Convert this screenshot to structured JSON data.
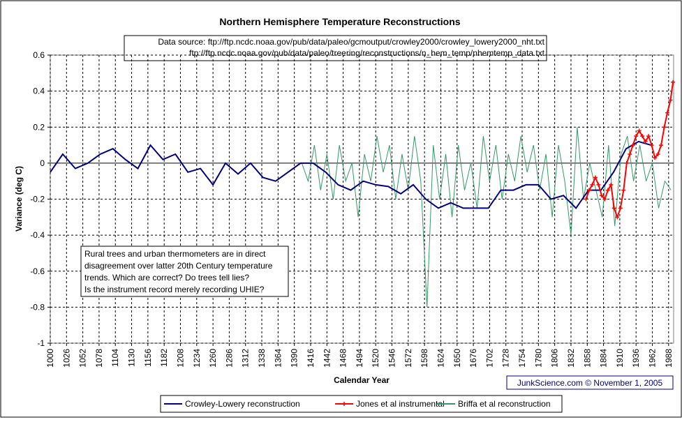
{
  "chart_data": {
    "type": "line",
    "title": "Northern Hemisphere Temperature Reconstructions",
    "source_lines": [
      "Data source: ftp://ftp.ncdc.noaa.gov/pub/data/paleo/gcmoutput/crowley2000/crowley_lowery2000_nht.txt",
      "ftp://ftp.ncdc.noaa.gov/pub/data/paleo/treering/reconstructions/n_hem_temp/nhemtemp_data.txt"
    ],
    "annotation": [
      "Rural trees and urban thermometers are in direct",
      "disagreement over latter 20th Century temperature",
      "trends. Which are correct? Do trees tell lies?",
      "Is the instrument record merely recording UHIE?"
    ],
    "credit": "JunkScience.com ©  November 1, 2005",
    "x_label": "Calendar Year",
    "y_label": "Variance (deg C)",
    "xlim": [
      1000,
      1996
    ],
    "ylim": [
      -1,
      0.6
    ],
    "xticks": [
      1000,
      1026,
      1052,
      1078,
      1104,
      1130,
      1156,
      1182,
      1208,
      1234,
      1260,
      1286,
      1312,
      1338,
      1364,
      1390,
      1416,
      1442,
      1468,
      1494,
      1520,
      1546,
      1572,
      1598,
      1624,
      1650,
      1676,
      1702,
      1728,
      1754,
      1780,
      1806,
      1832,
      1858,
      1884,
      1910,
      1936,
      1962,
      1988
    ],
    "yticks": [
      {
        "value": 0.6,
        "label": "0.6"
      },
      {
        "value": 0.4,
        "label": "0.4"
      },
      {
        "value": 0.2,
        "label": "0.2"
      },
      0,
      {
        "value": -0.2,
        "label": "-0.2"
      },
      {
        "value": -0.4,
        "label": "-0.4"
      },
      {
        "value": -0.6,
        "label": "-0.6"
      },
      {
        "value": -0.8,
        "label": "-0.8"
      },
      -1
    ],
    "grid": true,
    "series": [
      {
        "name": "Crowley-Lowery reconstruction",
        "color": "#000080",
        "x": [
          1000,
          1020,
          1040,
          1060,
          1080,
          1100,
          1120,
          1140,
          1160,
          1180,
          1200,
          1220,
          1240,
          1260,
          1280,
          1300,
          1320,
          1340,
          1360,
          1380,
          1400,
          1420,
          1440,
          1460,
          1480,
          1500,
          1520,
          1540,
          1560,
          1580,
          1600,
          1620,
          1640,
          1660,
          1680,
          1700,
          1720,
          1740,
          1760,
          1780,
          1800,
          1820,
          1840,
          1860,
          1880,
          1900,
          1920,
          1940,
          1960
        ],
        "values": [
          -0.05,
          0.05,
          -0.03,
          0.0,
          0.05,
          0.08,
          0.02,
          -0.03,
          0.1,
          0.02,
          0.05,
          -0.05,
          -0.03,
          -0.12,
          0.0,
          -0.06,
          0.0,
          -0.08,
          -0.1,
          -0.05,
          0.0,
          0.0,
          -0.05,
          -0.12,
          -0.15,
          -0.1,
          -0.12,
          -0.13,
          -0.17,
          -0.12,
          -0.2,
          -0.25,
          -0.22,
          -0.25,
          -0.25,
          -0.25,
          -0.15,
          -0.15,
          -0.12,
          -0.12,
          -0.2,
          -0.18,
          -0.25,
          -0.15,
          -0.15,
          -0.05,
          0.08,
          0.12,
          0.1
        ]
      },
      {
        "name": "Jones et al instrumental",
        "color": "#ff0000",
        "marker": "plus",
        "x": [
          1856,
          1861,
          1866,
          1871,
          1876,
          1881,
          1886,
          1891,
          1896,
          1901,
          1906,
          1911,
          1916,
          1921,
          1926,
          1931,
          1936,
          1941,
          1946,
          1951,
          1956,
          1961,
          1966,
          1971,
          1976,
          1981,
          1986,
          1991,
          1995
        ],
        "values": [
          -0.2,
          -0.15,
          -0.12,
          -0.08,
          -0.12,
          -0.18,
          -0.2,
          -0.15,
          -0.12,
          -0.25,
          -0.3,
          -0.25,
          -0.15,
          0.0,
          0.05,
          0.1,
          0.15,
          0.18,
          0.15,
          0.12,
          0.15,
          0.1,
          0.03,
          0.05,
          0.1,
          0.2,
          0.28,
          0.35,
          0.45
        ]
      },
      {
        "name": "Briffa et al reconstruction",
        "color": "#339966",
        "x": [
          1402,
          1412,
          1422,
          1432,
          1442,
          1452,
          1462,
          1472,
          1482,
          1492,
          1502,
          1512,
          1522,
          1532,
          1542,
          1552,
          1562,
          1572,
          1582,
          1592,
          1602,
          1612,
          1622,
          1632,
          1642,
          1652,
          1662,
          1672,
          1682,
          1692,
          1702,
          1712,
          1722,
          1732,
          1742,
          1752,
          1762,
          1772,
          1782,
          1792,
          1802,
          1812,
          1822,
          1832,
          1842,
          1852,
          1862,
          1872,
          1882,
          1892,
          1902,
          1912,
          1922,
          1932,
          1942,
          1952,
          1962,
          1972,
          1982,
          1992
        ],
        "values": [
          0.0,
          -0.1,
          0.1,
          -0.15,
          0.05,
          -0.2,
          0.1,
          -0.1,
          0.0,
          -0.3,
          0.05,
          -0.1,
          0.15,
          -0.05,
          0.1,
          -0.2,
          0.05,
          -0.15,
          0.15,
          -0.1,
          -0.8,
          0.1,
          -0.2,
          0.05,
          -0.3,
          0.1,
          -0.15,
          0.0,
          -0.25,
          0.15,
          -0.1,
          0.1,
          -0.2,
          0.05,
          -0.1,
          0.15,
          -0.05,
          0.1,
          -0.15,
          0.05,
          -0.3,
          0.1,
          -0.1,
          -0.4,
          0.2,
          -0.2,
          0.0,
          -0.15,
          -0.3,
          0.1,
          -0.35,
          0.05,
          0.15,
          -0.1,
          0.1,
          -0.1,
          0.0,
          -0.25,
          -0.1,
          -0.15
        ]
      }
    ]
  }
}
